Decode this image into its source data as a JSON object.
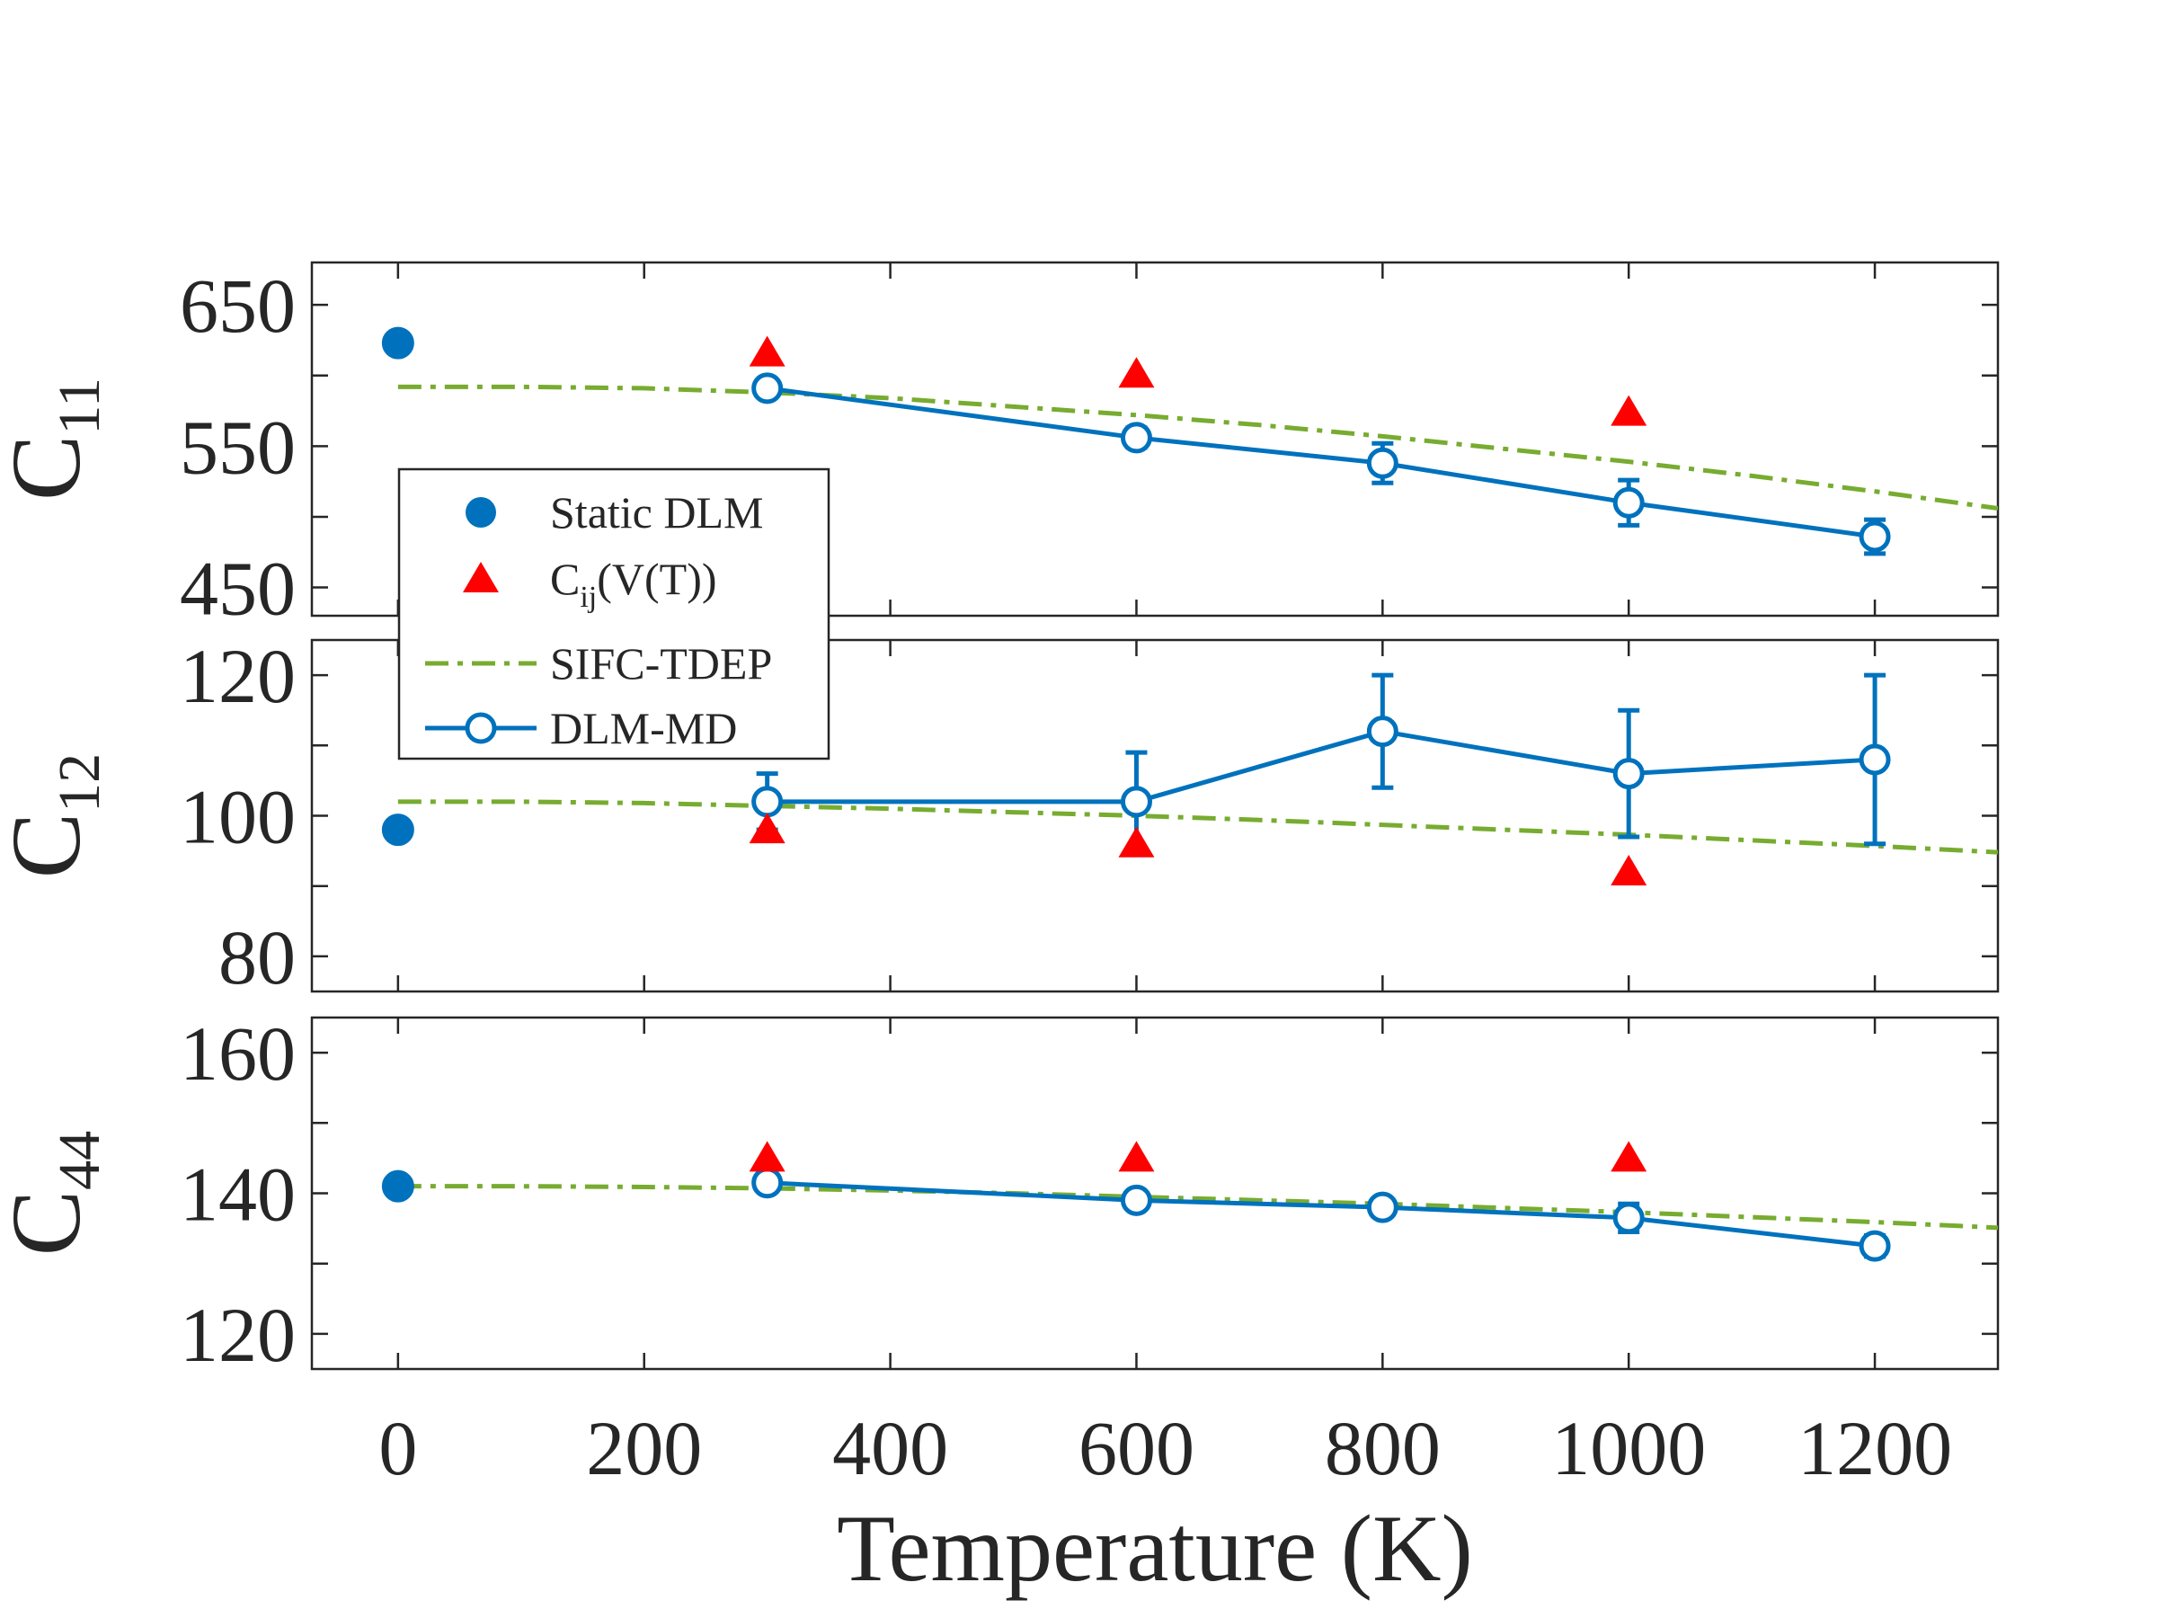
{
  "chart_data": {
    "type": "line",
    "xlabel": "Temperature (K)",
    "xlim": [
      -70,
      1300
    ],
    "xticks": [
      0,
      200,
      400,
      600,
      800,
      1000,
      1200
    ],
    "xtick_labels": [
      "0",
      "200",
      "400",
      "600",
      "800",
      "1000",
      "1200"
    ],
    "colors": {
      "dlm": "#0072BD",
      "cij": "#FF0000",
      "tdep": "#77AC30",
      "axis": "#262626"
    },
    "legend": {
      "position": "upper-left",
      "entries": [
        {
          "key": "static",
          "label": "Static DLM"
        },
        {
          "key": "cij",
          "label_main": "C",
          "label_sub": "ij",
          "label_rest": "(V(T))"
        },
        {
          "key": "tdep",
          "label": "SIFC-TDEP"
        },
        {
          "key": "dlmmd",
          "label": "DLM-MD"
        }
      ]
    },
    "panels": [
      {
        "ylabel": "C",
        "ylabel_sub": "11",
        "ylim": [
          430,
          680
        ],
        "yticks": [
          450,
          500,
          550,
          600,
          650
        ],
        "ytick_labels": [
          "450",
          "",
          "550",
          "",
          "650"
        ],
        "static_dlm": {
          "x": [
            0
          ],
          "y": [
            623
          ]
        },
        "cij_vt": {
          "x": [
            300,
            600,
            1000
          ],
          "y": [
            616,
            601,
            574
          ]
        },
        "sifc_tdep": {
          "x": [
            0,
            100,
            200,
            300,
            400,
            500,
            600,
            700,
            800,
            900,
            1000,
            1100,
            1200,
            1300
          ],
          "y": [
            592,
            592,
            591,
            588,
            584,
            578,
            572,
            565,
            557,
            548,
            539,
            529,
            518,
            506
          ]
        },
        "dlm_md": {
          "x": [
            300,
            600,
            800,
            1000,
            1200
          ],
          "y": [
            591,
            556,
            538,
            510,
            486
          ],
          "err": [
            6,
            7,
            14,
            16,
            12
          ]
        }
      },
      {
        "ylabel": "C",
        "ylabel_sub": "12",
        "ylim": [
          75,
          125
        ],
        "yticks": [
          80,
          90,
          100,
          110,
          120
        ],
        "ytick_labels": [
          "80",
          "",
          "100",
          "",
          "120"
        ],
        "static_dlm": {
          "x": [
            0
          ],
          "y": [
            98
          ]
        },
        "cij_vt": {
          "x": [
            300,
            600,
            1000
          ],
          "y": [
            98,
            96,
            92
          ]
        },
        "sifc_tdep": {
          "x": [
            0,
            100,
            200,
            300,
            400,
            500,
            600,
            700,
            800,
            900,
            1000,
            1100,
            1200,
            1300
          ],
          "y": [
            102,
            102,
            101.8,
            101.4,
            101,
            100.5,
            100,
            99.4,
            98.7,
            98,
            97.3,
            96.5,
            95.7,
            94.8
          ]
        },
        "dlm_md": {
          "x": [
            300,
            600,
            800,
            1000,
            1200
          ],
          "y": [
            102,
            102,
            112,
            106,
            108
          ],
          "err": [
            4,
            7,
            8,
            9,
            12
          ]
        }
      },
      {
        "ylabel": "C",
        "ylabel_sub": "44",
        "ylim": [
          115,
          165
        ],
        "yticks": [
          120,
          130,
          140,
          150,
          160
        ],
        "ytick_labels": [
          "120",
          "",
          "140",
          "",
          "160"
        ],
        "static_dlm": {
          "x": [
            0
          ],
          "y": [
            141
          ]
        },
        "cij_vt": {
          "x": [
            300,
            600,
            1000
          ],
          "y": [
            145,
            145,
            145
          ]
        },
        "sifc_tdep": {
          "x": [
            0,
            100,
            200,
            300,
            400,
            500,
            600,
            700,
            800,
            900,
            1000,
            1100,
            1200,
            1300
          ],
          "y": [
            141,
            141,
            140.9,
            140.7,
            140.4,
            140,
            139.5,
            139,
            138.5,
            137.9,
            137.3,
            136.6,
            135.9,
            135.1
          ]
        },
        "dlm_md": {
          "x": [
            300,
            600,
            800,
            1000,
            1200
          ],
          "y": [
            141.5,
            139,
            138,
            136.5,
            132.5
          ],
          "err": [
            1.2,
            1.2,
            1.2,
            2,
            1.5
          ]
        }
      }
    ]
  }
}
